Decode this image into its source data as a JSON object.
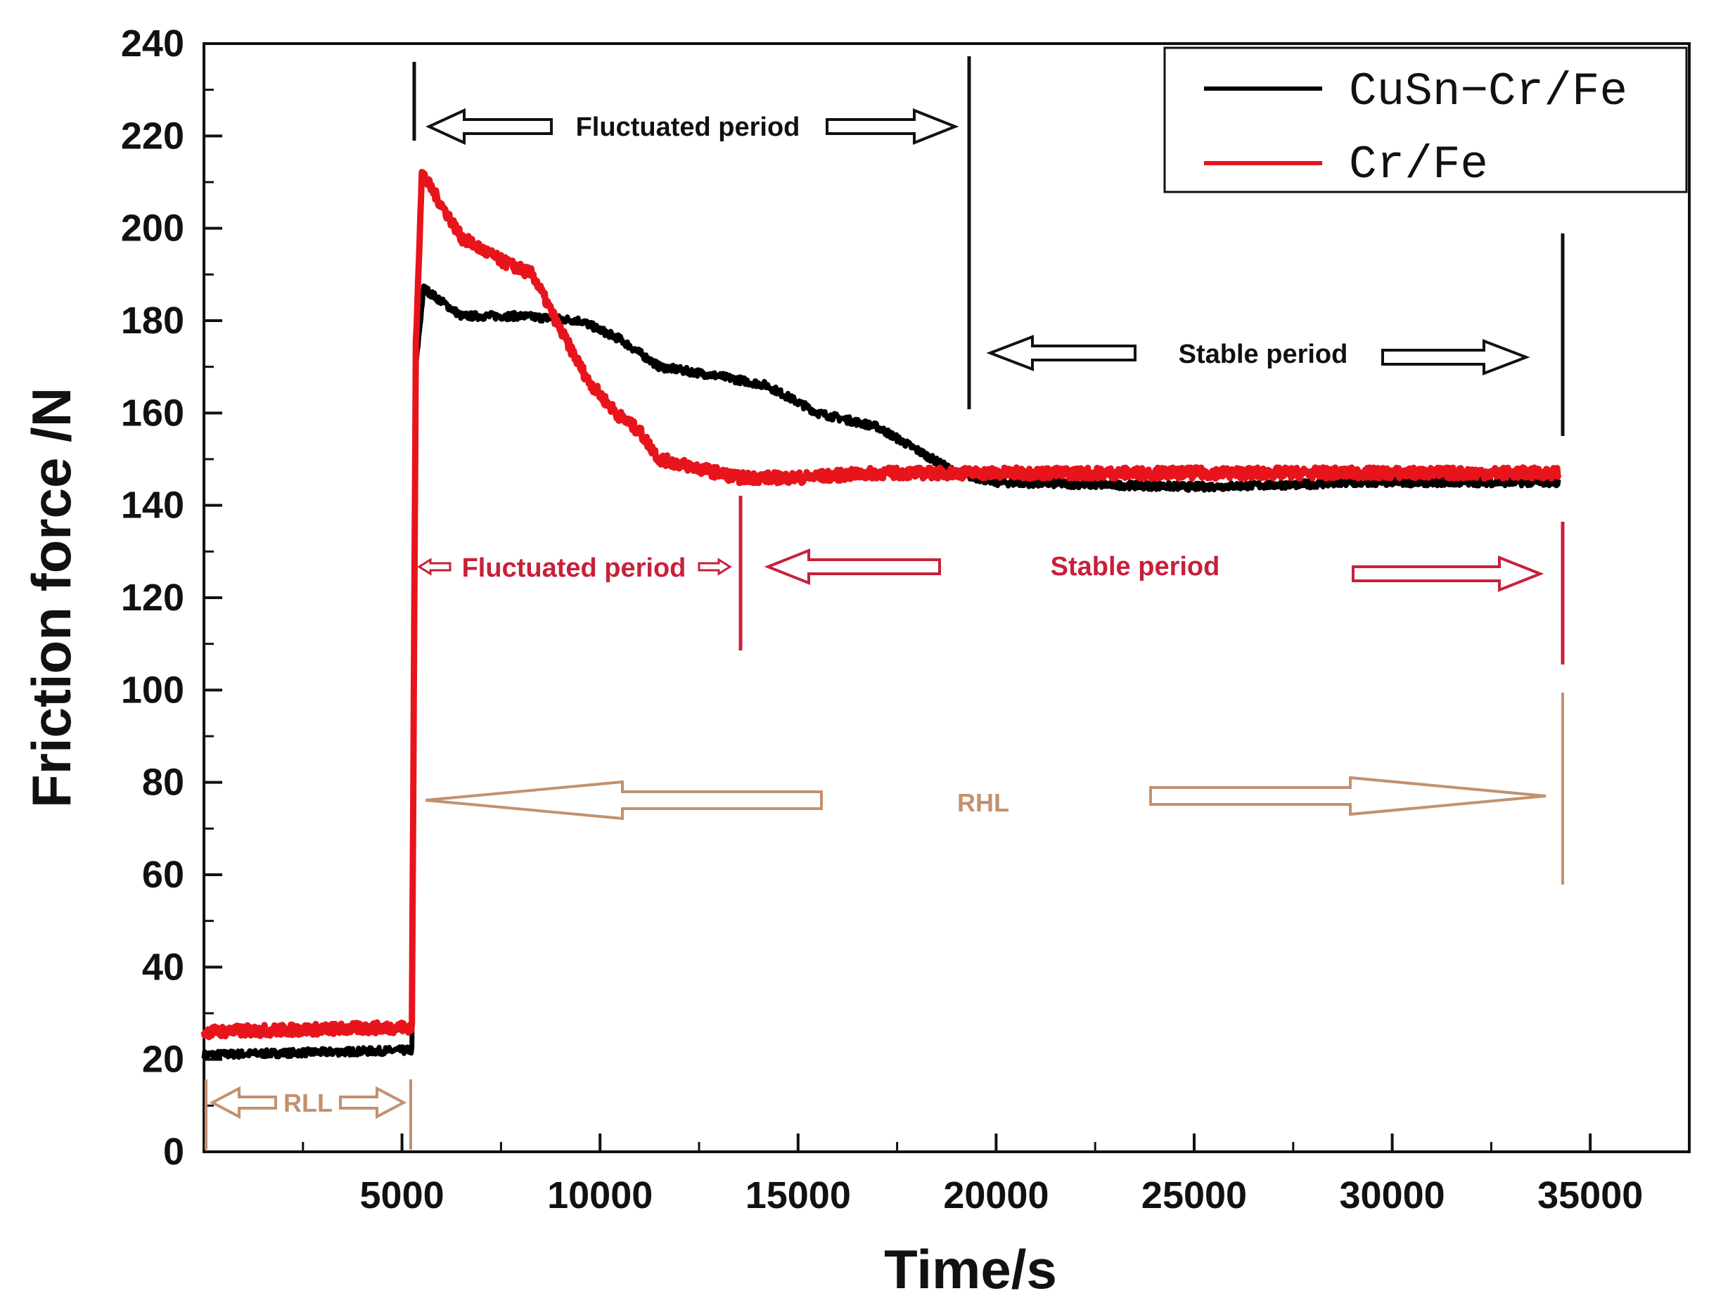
{
  "chart_data": {
    "type": "line",
    "title": "",
    "xlabel": "Time/s",
    "ylabel": "Friction force /N",
    "xlim": [
      0,
      37500
    ],
    "ylim": [
      0,
      240
    ],
    "x_ticks": [
      5000,
      10000,
      15000,
      20000,
      25000,
      30000,
      35000
    ],
    "y_ticks": [
      0,
      20,
      40,
      60,
      80,
      100,
      120,
      140,
      160,
      180,
      200,
      220,
      240
    ],
    "legend_position": "top-right",
    "series": [
      {
        "name": "CuSn−Cr/Fe",
        "color": "#000000",
        "points": [
          [
            0,
            21
          ],
          [
            5250,
            22
          ],
          [
            5350,
            170
          ],
          [
            5550,
            187
          ],
          [
            6500,
            181
          ],
          [
            8000,
            181
          ],
          [
            9500,
            180
          ],
          [
            10500,
            176
          ],
          [
            11500,
            170
          ],
          [
            13000,
            168
          ],
          [
            14200,
            166
          ],
          [
            15500,
            160
          ],
          [
            17000,
            157
          ],
          [
            18000,
            152
          ],
          [
            19000,
            147
          ],
          [
            20000,
            145
          ],
          [
            25000,
            144
          ],
          [
            30000,
            145
          ],
          [
            34200,
            145
          ]
        ]
      },
      {
        "name": "Cr/Fe",
        "color": "#e8141c",
        "points": [
          [
            0,
            26
          ],
          [
            5250,
            27
          ],
          [
            5350,
            175
          ],
          [
            5500,
            212
          ],
          [
            6500,
            198
          ],
          [
            7500,
            193
          ],
          [
            8300,
            190
          ],
          [
            9000,
            178
          ],
          [
            9700,
            167
          ],
          [
            10400,
            160
          ],
          [
            11000,
            156
          ],
          [
            11500,
            150
          ],
          [
            12500,
            148
          ],
          [
            13500,
            146
          ],
          [
            15000,
            146
          ],
          [
            17000,
            147
          ],
          [
            19000,
            147
          ],
          [
            25000,
            147
          ],
          [
            30000,
            147
          ],
          [
            34200,
            147
          ]
        ]
      }
    ],
    "annotations": {
      "black_fluctuated": "Fluctuated period",
      "black_stable": "Stable period",
      "red_fluctuated": "Fluctuated period",
      "red_stable": "Stable period",
      "rll": "RLL",
      "rhl": "RHL"
    }
  }
}
